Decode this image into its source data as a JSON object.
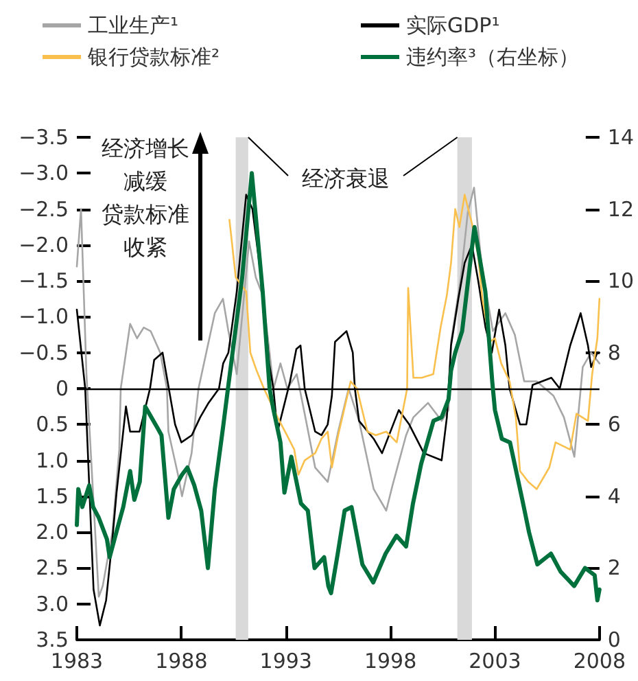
{
  "chart_data": {
    "type": "line",
    "xlim": [
      1983,
      2008
    ],
    "xticks": [
      1983,
      1988,
      1993,
      1998,
      2003,
      2008
    ],
    "ylim": [
      3.5,
      -3.5
    ],
    "yticks": [
      {
        "value": -3.5,
        "label": "−3.5"
      },
      {
        "value": -3,
        "label": "−3.0"
      },
      {
        "value": -2.5,
        "label": "−2.5"
      },
      {
        "value": -2,
        "label": "−2.0"
      },
      {
        "value": -1.5,
        "label": "−1.5"
      },
      {
        "value": -1,
        "label": "−1.0"
      },
      {
        "value": -0.5,
        "label": "−0.5"
      },
      0,
      {
        "value": 0.5,
        "label": "0.5"
      },
      {
        "value": 1,
        "label": "1.0"
      },
      {
        "value": 1.5,
        "label": "1.5"
      },
      {
        "value": 2,
        "label": "2.0"
      },
      {
        "value": 2.5,
        "label": "2.5"
      },
      {
        "value": 3,
        "label": "3.0"
      },
      {
        "value": 3.5,
        "label": "3.5"
      }
    ],
    "y2lim": [
      0,
      14
    ],
    "y2ticks": [
      0,
      2,
      4,
      6,
      8,
      10,
      12,
      14
    ],
    "legend": "top",
    "marker": "none",
    "line_style": "solid",
    "ref_lines": [
      {
        "axis": "y",
        "value": 0,
        "color": "#000000"
      }
    ],
    "bands": [
      {
        "axis": "x",
        "from": 1990.6,
        "to": 1991.2,
        "color": "#d9d9d9"
      },
      {
        "axis": "x",
        "from": 2001.2,
        "to": 2001.9,
        "color": "#d9d9d9"
      }
    ],
    "annotations": [
      "经济增长减缓",
      "贷款标准收紧",
      {
        "text": "经济衰退",
        "x": 1991.2,
        "y": -3.5
      }
    ],
    "series": [
      {
        "name": "工业生产¹",
        "color": "#a6a6a6",
        "x": [
          1983.0,
          1983.2,
          1983.46,
          1984.05,
          1984.24,
          1984.7,
          1985.03,
          1985.1,
          1985.55,
          1985.88,
          1986.2,
          1986.53,
          1986.99,
          1987.31,
          1987.38,
          1987.84,
          1988.03,
          1988.49,
          1988.82,
          1989.6,
          1989.99,
          1990.25,
          1990.65,
          1991.24,
          1991.56,
          1991.89,
          1992.22,
          1992.41,
          1992.74,
          1993.07,
          1993.52,
          1994.0,
          1994.4,
          1995.0,
          1995.5,
          1996.0,
          1996.5,
          1997.2,
          1997.8,
          1998.1,
          1998.75,
          1999.1,
          1999.8,
          2000.45,
          2000.78,
          2000.9,
          2001.37,
          2001.7,
          2002.0,
          2002.35,
          2002.9,
          2003.5,
          2003.95,
          2004.4,
          2005.0,
          2005.8,
          2006.3,
          2006.8,
          2007.2,
          2007.6,
          2008.0
        ],
        "values": [
          -1.7,
          -2.5,
          -0.2,
          2.9,
          2.75,
          2.0,
          0.85,
          0,
          -0.9,
          -0.7,
          -0.85,
          -0.8,
          -0.5,
          0,
          0.6,
          1.2,
          1.5,
          0.9,
          0,
          -1.05,
          -1.25,
          -0.8,
          -0.2,
          -2.05,
          -1.55,
          -1.3,
          -0.5,
          0,
          -0.35,
          0,
          -0.2,
          0.5,
          1.1,
          1.3,
          0.6,
          0,
          0.45,
          1.4,
          1.7,
          1.35,
          0.65,
          0.4,
          0.2,
          0.45,
          0.3,
          -0.65,
          -1.55,
          -2.45,
          -2.8,
          -1.75,
          -0.8,
          -1.05,
          -0.75,
          -0.1,
          -0.1,
          0.1,
          0.4,
          0.95,
          -0.3,
          -0.5,
          -0.35
        ]
      },
      {
        "name": "实际GDP¹",
        "color": "#000000",
        "x": [
          1983.0,
          1983.4,
          1983.8,
          1984.1,
          1984.4,
          1984.7,
          1984.9,
          1985.35,
          1985.55,
          1986.0,
          1986.5,
          1986.7,
          1987.1,
          1987.4,
          1987.7,
          1988.0,
          1988.5,
          1988.9,
          1989.3,
          1989.8,
          1990.0,
          1990.25,
          1990.65,
          1991.1,
          1991.4,
          1991.9,
          1992.2,
          1992.4,
          1992.6,
          1992.9,
          1993.2,
          1993.5,
          1993.7,
          1993.9,
          1994.4,
          1994.7,
          1995.0,
          1995.2,
          1995.35,
          1995.9,
          1996.2,
          1996.3,
          1996.5,
          1997.2,
          1997.6,
          1998.4,
          1998.9,
          1999.6,
          2000.45,
          2000.7,
          2000.9,
          2001.25,
          2001.55,
          2001.9,
          2002.2,
          2002.55,
          2002.85,
          2003.2,
          2003.5,
          2003.7,
          2004.2,
          2004.5,
          2004.8,
          2005.7,
          2006.1,
          2006.6,
          2007.1,
          2007.45,
          2007.6,
          2007.9,
          2008.0
        ],
        "values": [
          -1.1,
          0,
          2.8,
          3.3,
          2.95,
          2.1,
          1.45,
          0.25,
          0.6,
          0.6,
          0,
          -0.4,
          -0.5,
          0,
          0.5,
          0.75,
          0.65,
          0.4,
          0.2,
          0,
          -0.35,
          -0.5,
          -1.35,
          -2.7,
          -2.5,
          -1.35,
          -0.35,
          0,
          0.6,
          0.25,
          -0.1,
          -0.55,
          -0.6,
          0,
          0.6,
          0.65,
          0.5,
          0.1,
          -0.65,
          -0.8,
          -0.5,
          0,
          0.45,
          0.7,
          0.9,
          0.3,
          0.5,
          0.9,
          1.0,
          0.4,
          -0.6,
          -1.25,
          -1.75,
          -2.0,
          -1.5,
          -0.85,
          -0.5,
          -1.1,
          -0.6,
          0,
          0.5,
          0.5,
          -0.05,
          -0.15,
          0,
          -0.6,
          -1.05,
          -0.6,
          -0.3,
          -0.5,
          -0.5
        ]
      },
      {
        "name": "银行贷款标准²",
        "color": "#f9c04e",
        "x": [
          1990.3,
          1990.6,
          1991.1,
          1991.3,
          1991.6,
          1991.95,
          1992.6,
          1993.05,
          1993.4,
          1993.6,
          1993.9,
          1994.4,
          1994.7,
          1995.0,
          1995.2,
          1995.5,
          1995.9,
          1996.1,
          1996.4,
          1996.9,
          1997.3,
          1997.8,
          1998.3,
          1998.5,
          1998.8,
          1998.85,
          1999.1,
          1999.5,
          2000.05,
          2000.4,
          2000.7,
          2000.9,
          2001.1,
          2001.3,
          2001.55,
          2001.9,
          2002.2,
          2002.4,
          2002.75,
          2003.0,
          2003.3,
          2003.7,
          2004.0,
          2004.2,
          2004.6,
          2005.0,
          2005.6,
          2005.9,
          2006.6,
          2006.9,
          2007.45,
          2007.65,
          2007.9,
          2008.0
        ],
        "values": [
          -2.35,
          -1.55,
          -1.35,
          -0.5,
          -0.25,
          0,
          0.4,
          0.65,
          0.85,
          1.2,
          1.0,
          0.9,
          0.7,
          0.6,
          1.1,
          0.65,
          0.15,
          -0.1,
          0,
          0.6,
          0.65,
          0.6,
          0.75,
          0.45,
          0,
          -1.4,
          -0.15,
          -0.15,
          -0.2,
          -0.85,
          -1.3,
          -1.75,
          -2.5,
          -2.25,
          -2.7,
          -2.3,
          -1.85,
          -1.25,
          -0.65,
          -0.7,
          -0.35,
          -0.1,
          0.4,
          1.15,
          1.3,
          1.4,
          1.1,
          0.75,
          0.85,
          0.35,
          0.45,
          -0.2,
          -0.7,
          -1.25
        ]
      },
      {
        "name": "违约率³（右坐标）",
        "color": "#00703c",
        "axis": "y2",
        "x": [
          1983.0,
          1983.07,
          1983.26,
          1983.59,
          1983.78,
          1984.05,
          1984.44,
          1984.57,
          1985.03,
          1985.22,
          1985.55,
          1985.75,
          1986.01,
          1986.27,
          1986.86,
          1987.05,
          1987.38,
          1987.64,
          1988.03,
          1988.29,
          1988.62,
          1988.95,
          1989.27,
          1989.6,
          1989.99,
          1990.25,
          1990.45,
          1990.91,
          1991.37,
          1991.89,
          1992.22,
          1992.41,
          1992.74,
          1992.93,
          1993.26,
          1993.72,
          1994.05,
          1994.37,
          1994.83,
          1995.03,
          1995.16,
          1995.48,
          1995.81,
          1996.14,
          1996.66,
          1997.18,
          1997.77,
          1998.29,
          1998.75,
          1999.08,
          1999.47,
          2000.06,
          2000.45,
          2000.78,
          2000.9,
          2001.1,
          2001.43,
          2002.02,
          2002.54,
          2002.87,
          2003.0,
          2003.33,
          2003.72,
          2004.31,
          2004.63,
          2005.03,
          2005.68,
          2006.14,
          2006.79,
          2007.31,
          2007.77,
          2007.9,
          2008.0
        ],
        "values": [
          3.2,
          4.2,
          3.7,
          4.3,
          3.7,
          3.4,
          2.8,
          2.3,
          3.3,
          3.7,
          4.7,
          3.9,
          4.4,
          6.5,
          5.9,
          5.7,
          3.4,
          4.2,
          4.6,
          4.8,
          4.3,
          3.6,
          2.0,
          4.2,
          5.9,
          7.1,
          8.0,
          10.1,
          13.0,
          9.7,
          7.0,
          6.4,
          5.5,
          4.1,
          5.1,
          3.8,
          3.6,
          2.0,
          2.3,
          1.5,
          1.3,
          2.4,
          3.6,
          3.7,
          2.1,
          1.6,
          2.4,
          2.9,
          2.6,
          3.8,
          4.9,
          6.1,
          6.2,
          6.7,
          7.5,
          8.0,
          8.6,
          11.5,
          9.7,
          7.2,
          6.4,
          5.6,
          5.5,
          3.9,
          3.0,
          2.1,
          2.4,
          1.9,
          1.5,
          2.0,
          1.8,
          1.1,
          1.4
        ]
      }
    ]
  }
}
